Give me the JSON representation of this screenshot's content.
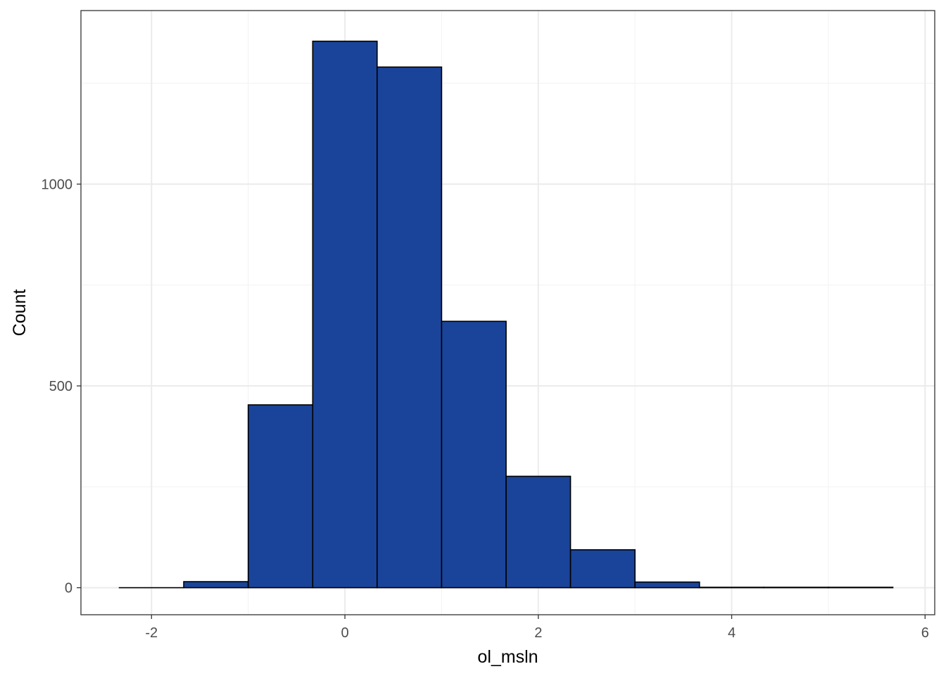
{
  "chart_data": {
    "type": "bar",
    "subtype": "histogram",
    "title": "",
    "xlabel": "ol_msln",
    "ylabel": "Count",
    "xlim": [
      -2.73,
      6.1
    ],
    "ylim": [
      -67,
      1430
    ],
    "x_ticks": [
      -2,
      0,
      2,
      4,
      6
    ],
    "x_tick_labels": [
      "-2",
      "0",
      "2",
      "4",
      "6"
    ],
    "y_ticks": [
      0,
      500,
      1000
    ],
    "y_tick_labels": [
      "0",
      "500",
      "1000"
    ],
    "y_minor_grid": [
      250,
      750,
      1250
    ],
    "x_minor_grid": [
      -1,
      1,
      3,
      5
    ],
    "grid": true,
    "bins": {
      "edges": [
        -2.333,
        -1.667,
        -1.0,
        -0.333,
        0.333,
        1.0,
        1.667,
        2.333,
        3.0,
        3.667,
        4.333,
        5.0,
        5.667
      ],
      "counts": [
        0,
        15,
        453,
        1354,
        1290,
        660,
        276,
        94,
        14,
        1,
        1,
        1
      ]
    },
    "colors": {
      "bar_fill": "#1a4499",
      "bar_outline": "#000000",
      "grid_major": "#ebebeb",
      "grid_minor": "#f4f4f4",
      "panel_border": "#333333",
      "tick_text": "#4d4d4d"
    }
  }
}
